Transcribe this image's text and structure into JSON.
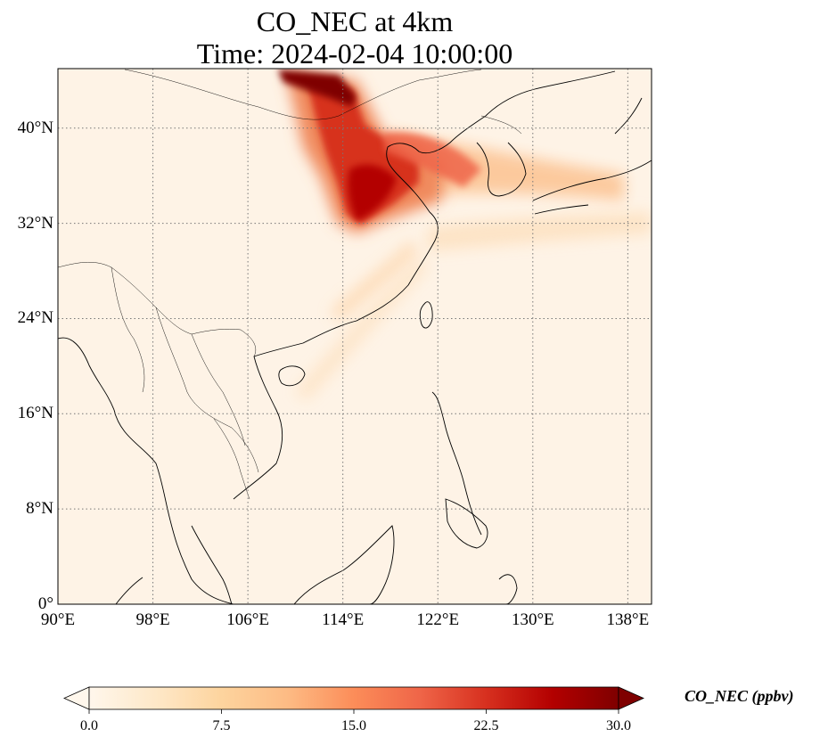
{
  "title": {
    "line1": "CO_NEC at 4km",
    "line2": "Time: 2024-02-04 10:00:00"
  },
  "map": {
    "variable": "CO_NEC",
    "projection": "PlateCarree",
    "lon_range": [
      90,
      140
    ],
    "lat_range": [
      0,
      45
    ],
    "gridlines": "dotted",
    "lat_ticks": [
      {
        "value": 0,
        "label": "0°"
      },
      {
        "value": 8,
        "label": "8°N"
      },
      {
        "value": 16,
        "label": "16°N"
      },
      {
        "value": 24,
        "label": "24°N"
      },
      {
        "value": 32,
        "label": "32°N"
      },
      {
        "value": 40,
        "label": "40°N"
      }
    ],
    "lon_ticks": [
      {
        "value": 90,
        "label": "90°E"
      },
      {
        "value": 98,
        "label": "98°E"
      },
      {
        "value": 106,
        "label": "106°E"
      },
      {
        "value": 114,
        "label": "114°E"
      },
      {
        "value": 122,
        "label": "122°E"
      },
      {
        "value": 130,
        "label": "130°E"
      },
      {
        "value": 138,
        "label": "138°E"
      }
    ],
    "plume_features": [
      {
        "name": "northern plume core",
        "lon": [
          107.5,
          111
        ],
        "lat": [
          43,
          45
        ],
        "level": "high"
      },
      {
        "name": "north china plain plume",
        "lon": [
          111,
          120
        ],
        "lat": [
          31,
          41
        ],
        "level": "high"
      },
      {
        "name": "yellow sea outflow",
        "lon": [
          117,
          135
        ],
        "lat": [
          33,
          38
        ],
        "level": "medium"
      },
      {
        "name": "pacific streak",
        "lon": [
          120,
          140
        ],
        "lat": [
          30,
          34
        ],
        "level": "low"
      }
    ]
  },
  "colorbar": {
    "label": "CO_NEC (ppbv)",
    "colormap": "OrRd",
    "min": 0.0,
    "max": 30.0,
    "extend": "both",
    "ticks": [
      "0.0",
      "7.5",
      "15.0",
      "22.5",
      "30.0"
    ],
    "tick_values": [
      0.0,
      7.5,
      15.0,
      22.5,
      30.0
    ],
    "colors": [
      "#fff7ec",
      "#fee8c8",
      "#fdd49e",
      "#fdbb84",
      "#fc8d59",
      "#ef6548",
      "#d7301f",
      "#b30000",
      "#7f0000"
    ]
  }
}
